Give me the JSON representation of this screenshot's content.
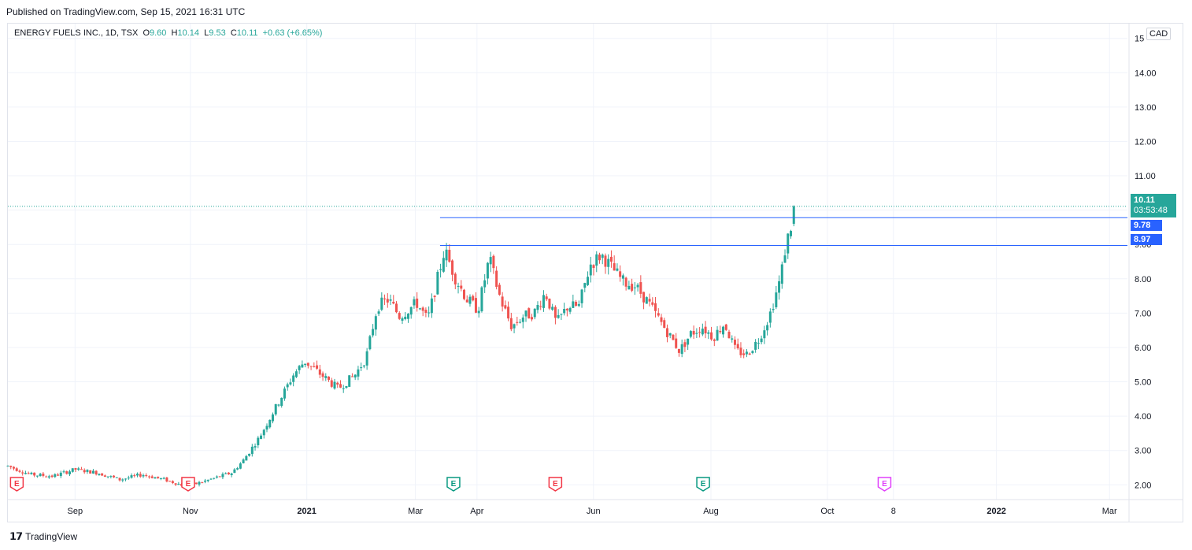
{
  "header": {
    "published": "Published on TradingView.com, Sep 15, 2021 16:31 UTC"
  },
  "legend": {
    "symbol": "ENERGY FUELS INC., 1D, TSX",
    "o_label": "O",
    "o_value": "9.60",
    "h_label": "H",
    "h_value": "10.14",
    "l_label": "L",
    "l_value": "9.53",
    "c_label": "C",
    "c_value": "10.11",
    "change": "+0.63 (+6.65%)"
  },
  "currency": "CAD",
  "price_tags": {
    "last": "10.11",
    "countdown": "03:53:48",
    "level_high": "9.78",
    "level_low": "8.97"
  },
  "footer": {
    "brand": "TradingView",
    "logo_icon": "tradingview-logo-icon"
  },
  "colors": {
    "up": "#26a69a",
    "down": "#ef5350",
    "level_line": "#2962ff",
    "grid": "#f0f3fa",
    "earnings_red": "#f23645",
    "earnings_green": "#089981",
    "earnings_magenta": "#e040fb"
  },
  "chart_data": {
    "type": "candlestick",
    "symbol": "ENERGY FUELS INC., 1D, TSX",
    "currency": "CAD",
    "y_ticks": [
      "2.00",
      "3.00",
      "4.00",
      "5.00",
      "6.00",
      "7.00",
      "8.00",
      "9.00",
      "10.00",
      "11.00",
      "12.00",
      "13.00",
      "14.00",
      "15.00"
    ],
    "y_tick_top_label": "15",
    "ylim": [
      1.8,
      15.2
    ],
    "x_ticks": [
      {
        "label": "Sep",
        "t": 0.06
      },
      {
        "label": "Nov",
        "t": 0.163
      },
      {
        "label": "2021",
        "t": 0.267
      },
      {
        "label": "Mar",
        "t": 0.364
      },
      {
        "label": "Apr",
        "t": 0.419
      },
      {
        "label": "Jun",
        "t": 0.523
      },
      {
        "label": "Aug",
        "t": 0.628
      },
      {
        "label": "Oct",
        "t": 0.732
      },
      {
        "label": "8",
        "t": 0.791
      },
      {
        "label": "2022",
        "t": 0.883
      },
      {
        "label": "Mar",
        "t": 0.984
      }
    ],
    "price_path": [
      [
        0.0,
        2.55
      ],
      [
        0.02,
        2.3
      ],
      [
        0.04,
        2.25
      ],
      [
        0.06,
        2.45
      ],
      [
        0.08,
        2.35
      ],
      [
        0.1,
        2.15
      ],
      [
        0.12,
        2.3
      ],
      [
        0.14,
        2.15
      ],
      [
        0.16,
        1.95
      ],
      [
        0.18,
        2.15
      ],
      [
        0.2,
        2.35
      ],
      [
        0.21,
        2.7
      ],
      [
        0.225,
        3.4
      ],
      [
        0.24,
        4.3
      ],
      [
        0.255,
        5.2
      ],
      [
        0.265,
        5.6
      ],
      [
        0.28,
        5.2
      ],
      [
        0.295,
        4.8
      ],
      [
        0.31,
        5.2
      ],
      [
        0.32,
        5.7
      ],
      [
        0.33,
        7.2
      ],
      [
        0.34,
        7.4
      ],
      [
        0.35,
        6.9
      ],
      [
        0.365,
        7.3
      ],
      [
        0.375,
        6.8
      ],
      [
        0.39,
        8.85
      ],
      [
        0.4,
        8.0
      ],
      [
        0.41,
        7.4
      ],
      [
        0.42,
        7.1
      ],
      [
        0.43,
        8.6
      ],
      [
        0.44,
        7.4
      ],
      [
        0.45,
        6.6
      ],
      [
        0.46,
        6.9
      ],
      [
        0.47,
        7.0
      ],
      [
        0.48,
        7.6
      ],
      [
        0.49,
        6.7
      ],
      [
        0.5,
        7.2
      ],
      [
        0.51,
        7.2
      ],
      [
        0.52,
        8.4
      ],
      [
        0.53,
        8.7
      ],
      [
        0.54,
        8.3
      ],
      [
        0.55,
        7.9
      ],
      [
        0.56,
        7.8
      ],
      [
        0.57,
        7.4
      ],
      [
        0.58,
        6.9
      ],
      [
        0.59,
        6.4
      ],
      [
        0.6,
        5.9
      ],
      [
        0.61,
        6.4
      ],
      [
        0.62,
        6.6
      ],
      [
        0.63,
        6.3
      ],
      [
        0.64,
        6.7
      ],
      [
        0.65,
        5.9
      ],
      [
        0.66,
        5.8
      ],
      [
        0.67,
        6.2
      ],
      [
        0.68,
        6.9
      ],
      [
        0.69,
        8.0
      ],
      [
        0.695,
        9.0
      ],
      [
        0.7,
        9.6
      ],
      [
        0.702,
        10.11
      ]
    ],
    "overlays": [
      {
        "type": "hline",
        "value": 10.11,
        "style": "dotted",
        "label": "10.11"
      },
      {
        "type": "hline",
        "value": 9.78,
        "from_t": 0.386,
        "label": "9.78"
      },
      {
        "type": "hline",
        "value": 8.97,
        "from_t": 0.386,
        "label": "8.97"
      }
    ],
    "events": [
      {
        "label": "E",
        "t": 0.008,
        "color": "earnings_red"
      },
      {
        "label": "E",
        "t": 0.161,
        "color": "earnings_red"
      },
      {
        "label": "E",
        "t": 0.398,
        "color": "earnings_green"
      },
      {
        "label": "E",
        "t": 0.489,
        "color": "earnings_red"
      },
      {
        "label": "E",
        "t": 0.621,
        "color": "earnings_green"
      },
      {
        "label": "E",
        "t": 0.783,
        "color": "earnings_magenta"
      }
    ]
  }
}
